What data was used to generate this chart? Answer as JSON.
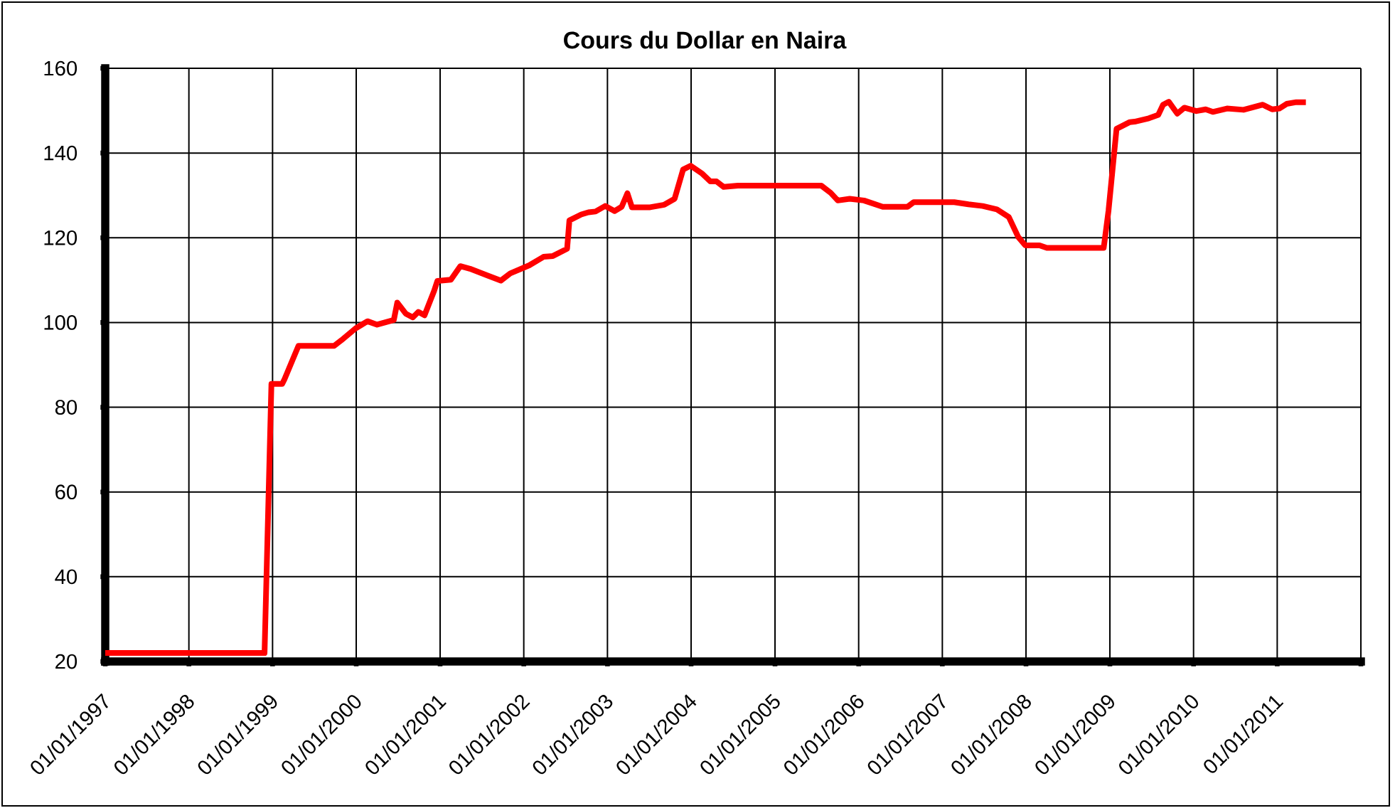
{
  "chart_data": {
    "type": "line",
    "title": "Cours du Dollar en Naira",
    "x": [
      "1997-01-01",
      "1998-11-27",
      "1998-12-27",
      "1999-02-12",
      "1999-02-22",
      "1999-04-24",
      "1999-09-27",
      "1999-10-28",
      "1999-12-29",
      "2000-02-19",
      "2000-04-01",
      "2000-06-13",
      "2000-06-28",
      "2000-08-04",
      "2000-09-04",
      "2000-09-28",
      "2000-10-25",
      "2000-12-06",
      "2000-12-20",
      "2001-02-17",
      "2001-03-30",
      "2001-05-11",
      "2001-08-01",
      "2001-09-23",
      "2001-11-03",
      "2002-01-25",
      "2002-03-28",
      "2002-05-08",
      "2002-07-09",
      "2002-07-19",
      "2002-09-09",
      "2002-10-10",
      "2002-11-10",
      "2002-12-22",
      "2003-02-01",
      "2003-03-04",
      "2003-03-29",
      "2003-04-18",
      "2003-07-06",
      "2003-09-06",
      "2003-10-21",
      "2003-11-27",
      "2003-12-30",
      "2004-02-19",
      "2004-03-25",
      "2004-04-21",
      "2004-05-22",
      "2004-07-23",
      "2005-07-22",
      "2005-09-01",
      "2005-10-02",
      "2005-11-23",
      "2006-01-24",
      "2006-04-16",
      "2006-08-02",
      "2006-08-29",
      "2007-02-22",
      "2007-04-25",
      "2007-06-26",
      "2007-08-27",
      "2007-10-18",
      "2007-11-28",
      "2007-12-29",
      "2008-02-29",
      "2008-04-01",
      "2008-12-05",
      "2008-12-26",
      "2009-01-30",
      "2009-03-29",
      "2009-04-19",
      "2009-06-20",
      "2009-07-31",
      "2009-08-21",
      "2009-09-15",
      "2009-10-22",
      "2009-11-22",
      "2010-01-13",
      "2010-02-23",
      "2010-03-26",
      "2010-05-27",
      "2010-08-07",
      "2010-10-30",
      "2010-12-10",
      "2011-01-10",
      "2011-02-11",
      "2011-03-25",
      "2011-05-06"
    ],
    "series": [
      {
        "color": "#ff0000",
        "values": [
          22,
          22,
          85.5,
          85.5,
          86.6,
          94.5,
          94.5,
          95.8,
          98.6,
          100.3,
          99.5,
          100.6,
          104.7,
          102.1,
          101.2,
          102.5,
          101.7,
          107.5,
          109.8,
          110.1,
          113.3,
          112.7,
          111.0,
          109.9,
          111.6,
          113.5,
          115.5,
          115.7,
          117.4,
          124.1,
          125.5,
          126.0,
          126.2,
          127.5,
          126.3,
          127.3,
          130.5,
          127.2,
          127.2,
          127.8,
          129.2,
          136.1,
          137.0,
          135.1,
          133.3,
          133.3,
          132.0,
          132.3,
          132.3,
          130.6,
          128.8,
          129.2,
          128.8,
          127.3,
          127.3,
          128.4,
          128.4,
          127.9,
          127.5,
          126.7,
          124.9,
          120.2,
          118.2,
          118.2,
          117.6,
          117.6,
          126.4,
          145.7,
          147.3,
          147.4,
          148.2,
          149.0,
          151.4,
          152.1,
          149.3,
          150.7,
          149.9,
          150.3,
          149.7,
          150.5,
          150.2,
          151.4,
          150.3,
          150.5,
          151.6,
          152.0,
          152.0
        ]
      }
    ],
    "xlim": [
      "1997-01-01",
      "2012-01-01"
    ],
    "xticks": [
      {
        "value": "1997-01-01",
        "label": "01/01/1997"
      },
      {
        "value": "1998-01-01",
        "label": "01/01/1998"
      },
      {
        "value": "1999-01-01",
        "label": "01/01/1999"
      },
      {
        "value": "2000-01-01",
        "label": "01/01/2000"
      },
      {
        "value": "2001-01-01",
        "label": "01/01/2001"
      },
      {
        "value": "2002-01-01",
        "label": "01/01/2002"
      },
      {
        "value": "2003-01-01",
        "label": "01/01/2003"
      },
      {
        "value": "2004-01-01",
        "label": "01/01/2004"
      },
      {
        "value": "2005-01-01",
        "label": "01/01/2005"
      },
      {
        "value": "2006-01-01",
        "label": "01/01/2006"
      },
      {
        "value": "2007-01-01",
        "label": "01/01/2007"
      },
      {
        "value": "2008-01-01",
        "label": "01/01/2008"
      },
      {
        "value": "2009-01-01",
        "label": "01/01/2009"
      },
      {
        "value": "2010-01-01",
        "label": "01/01/2010"
      },
      {
        "value": "2011-01-01",
        "label": "01/01/2011"
      },
      {
        "value": "2012-01-01",
        "label": null
      }
    ],
    "ylim": [
      20,
      160
    ],
    "yticks": [
      20,
      40,
      60,
      80,
      100,
      120,
      140,
      160
    ],
    "grid": true,
    "marker": "none",
    "line_style": "solid"
  }
}
